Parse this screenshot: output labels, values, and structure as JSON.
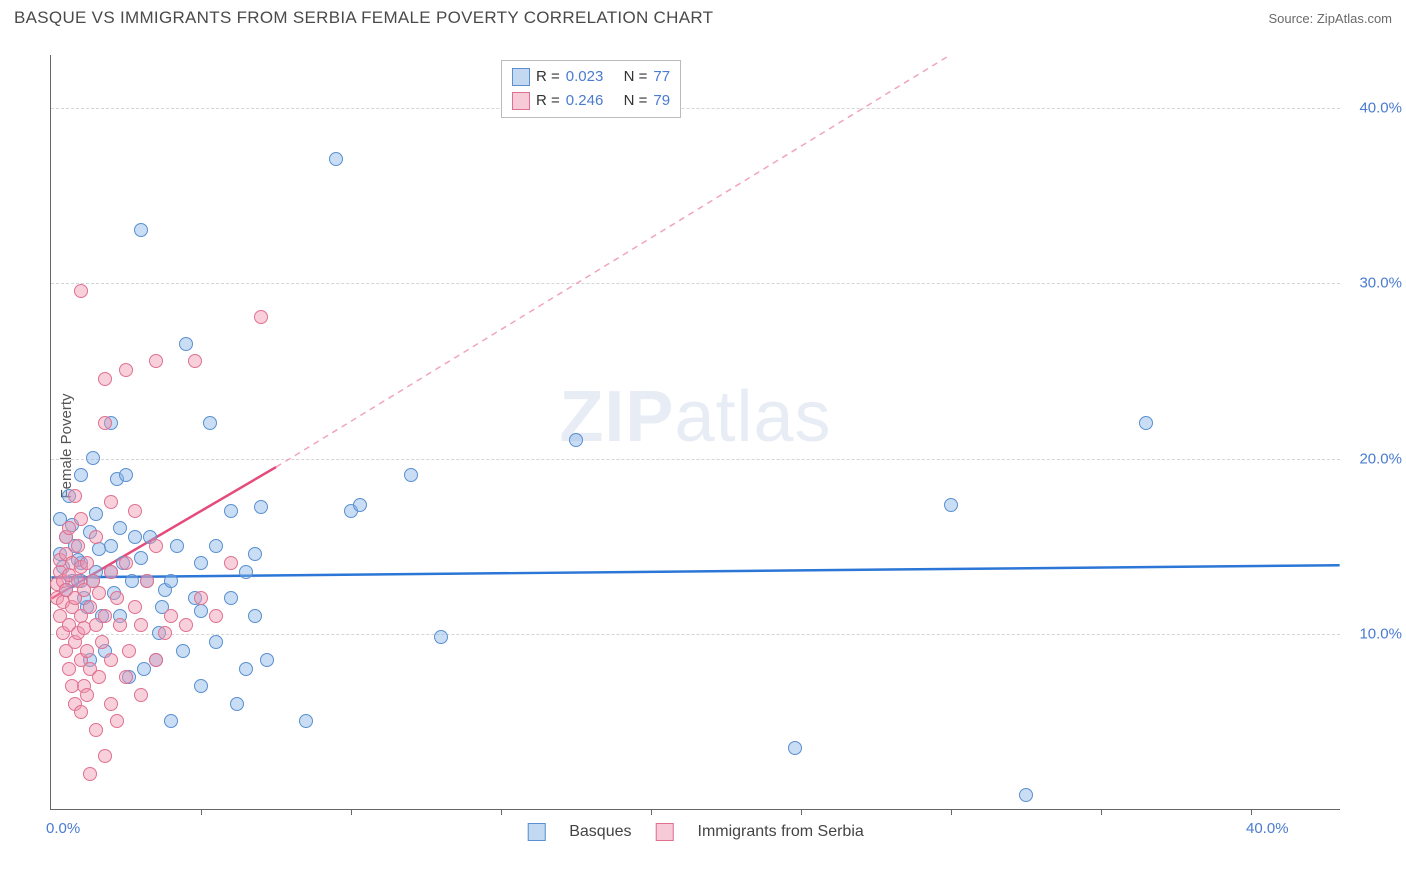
{
  "title": "BASQUE VS IMMIGRANTS FROM SERBIA FEMALE POVERTY CORRELATION CHART",
  "source": "Source: ZipAtlas.com",
  "ylabel": "Female Poverty",
  "watermark": {
    "bold": "ZIP",
    "rest": "atlas"
  },
  "chart": {
    "type": "scatter",
    "xlim": [
      0,
      43
    ],
    "ylim": [
      0,
      43
    ],
    "background_color": "#ffffff",
    "grid_color": "#d5d5d5",
    "axis_color": "#666666",
    "label_color": "#4a7bd0",
    "point_radius": 7,
    "yticks": [
      {
        "value": 10,
        "label": "10.0%"
      },
      {
        "value": 20,
        "label": "20.0%"
      },
      {
        "value": 30,
        "label": "30.0%"
      },
      {
        "value": 40,
        "label": "40.0%"
      }
    ],
    "xticks": [
      5,
      10,
      15,
      20,
      25,
      30,
      35,
      40
    ],
    "xaxis_labels": [
      {
        "value": 0,
        "text": "0.0%"
      },
      {
        "value": 40,
        "text": "40.0%"
      }
    ],
    "series": [
      {
        "name": "Basques",
        "class": "point-blue",
        "color_fill": "rgba(135,180,230,0.45)",
        "color_stroke": "#5a8fd0",
        "R": "0.023",
        "N": "77",
        "trend": {
          "x1": 0,
          "y1": 13.2,
          "x2": 43,
          "y2": 13.9,
          "color": "#2b76d6",
          "width": 2.5,
          "dash": "none"
        },
        "points": [
          [
            0.3,
            16.5
          ],
          [
            0.3,
            14.5
          ],
          [
            0.4,
            13.8
          ],
          [
            0.5,
            12.5
          ],
          [
            0.5,
            15.5
          ],
          [
            0.6,
            17.8
          ],
          [
            0.7,
            16.2
          ],
          [
            0.8,
            15.0
          ],
          [
            1.0,
            13.0
          ],
          [
            1.0,
            19.0
          ],
          [
            1.2,
            11.5
          ],
          [
            1.3,
            8.5
          ],
          [
            1.4,
            20.0
          ],
          [
            1.5,
            13.5
          ],
          [
            1.6,
            14.8
          ],
          [
            1.8,
            9.0
          ],
          [
            2.0,
            13.5
          ],
          [
            2.0,
            22.0
          ],
          [
            2.2,
            18.8
          ],
          [
            2.3,
            11.0
          ],
          [
            2.5,
            19.0
          ],
          [
            2.6,
            7.5
          ],
          [
            2.8,
            15.5
          ],
          [
            3.0,
            33.0
          ],
          [
            3.1,
            8.0
          ],
          [
            3.2,
            13.0
          ],
          [
            3.5,
            8.5
          ],
          [
            3.7,
            11.5
          ],
          [
            4.0,
            5.0
          ],
          [
            4.2,
            15.0
          ],
          [
            4.4,
            9.0
          ],
          [
            4.5,
            26.5
          ],
          [
            5.0,
            14.0
          ],
          [
            5.0,
            11.3
          ],
          [
            5.0,
            7.0
          ],
          [
            5.3,
            22.0
          ],
          [
            5.5,
            9.5
          ],
          [
            6.0,
            17.0
          ],
          [
            6.2,
            6.0
          ],
          [
            6.5,
            8.0
          ],
          [
            6.5,
            13.5
          ],
          [
            6.8,
            11.0
          ],
          [
            7.0,
            17.2
          ],
          [
            7.2,
            8.5
          ],
          [
            8.5,
            5.0
          ],
          [
            9.5,
            37.0
          ],
          [
            10.0,
            17.0
          ],
          [
            10.3,
            17.3
          ],
          [
            12.0,
            19.0
          ],
          [
            13.0,
            9.8
          ],
          [
            17.5,
            21.0
          ],
          [
            24.8,
            3.5
          ],
          [
            30.0,
            17.3
          ],
          [
            32.5,
            0.8
          ],
          [
            36.5,
            22.0
          ],
          [
            1.0,
            14.0
          ],
          [
            1.3,
            15.8
          ],
          [
            1.5,
            16.8
          ],
          [
            2.1,
            12.3
          ],
          [
            2.4,
            14.0
          ],
          [
            3.0,
            14.3
          ],
          [
            3.8,
            12.5
          ],
          [
            0.7,
            13.0
          ],
          [
            0.9,
            14.2
          ],
          [
            1.1,
            12.0
          ],
          [
            1.4,
            13.0
          ],
          [
            1.7,
            11.0
          ],
          [
            2.0,
            15.0
          ],
          [
            2.3,
            16.0
          ],
          [
            2.7,
            13.0
          ],
          [
            3.3,
            15.5
          ],
          [
            3.6,
            10.0
          ],
          [
            4.0,
            13.0
          ],
          [
            4.8,
            12.0
          ],
          [
            5.5,
            15.0
          ],
          [
            6.0,
            12.0
          ],
          [
            6.8,
            14.5
          ]
        ]
      },
      {
        "name": "Immigrants from Serbia",
        "class": "point-pink",
        "color_fill": "rgba(240,150,175,0.45)",
        "color_stroke": "#e07090",
        "R": "0.246",
        "N": "79",
        "trend": {
          "x1": 0,
          "y1": 12.0,
          "x2": 7.5,
          "y2": 19.5,
          "color": "#e54b7a",
          "width": 2.5,
          "dash": "none"
        },
        "trend_ext": {
          "x1": 7.5,
          "y1": 19.5,
          "x2": 30,
          "y2": 43,
          "color": "#f0a5bc",
          "width": 1.5,
          "dash": "6,5"
        },
        "points": [
          [
            0.2,
            12.0
          ],
          [
            0.2,
            12.8
          ],
          [
            0.3,
            11.0
          ],
          [
            0.3,
            13.5
          ],
          [
            0.3,
            14.2
          ],
          [
            0.4,
            10.0
          ],
          [
            0.4,
            11.8
          ],
          [
            0.4,
            13.0
          ],
          [
            0.5,
            9.0
          ],
          [
            0.5,
            12.5
          ],
          [
            0.5,
            14.5
          ],
          [
            0.5,
            15.5
          ],
          [
            0.6,
            8.0
          ],
          [
            0.6,
            10.5
          ],
          [
            0.6,
            13.3
          ],
          [
            0.6,
            16.0
          ],
          [
            0.7,
            7.0
          ],
          [
            0.7,
            11.5
          ],
          [
            0.7,
            14.0
          ],
          [
            0.8,
            6.0
          ],
          [
            0.8,
            9.5
          ],
          [
            0.8,
            12.0
          ],
          [
            0.8,
            17.8
          ],
          [
            0.9,
            10.0
          ],
          [
            0.9,
            13.0
          ],
          [
            0.9,
            15.0
          ],
          [
            1.0,
            5.5
          ],
          [
            1.0,
            8.5
          ],
          [
            1.0,
            11.0
          ],
          [
            1.0,
            13.8
          ],
          [
            1.0,
            16.5
          ],
          [
            1.0,
            29.5
          ],
          [
            1.1,
            7.0
          ],
          [
            1.1,
            10.3
          ],
          [
            1.1,
            12.5
          ],
          [
            1.2,
            6.5
          ],
          [
            1.2,
            9.0
          ],
          [
            1.2,
            14.0
          ],
          [
            1.3,
            2.0
          ],
          [
            1.3,
            8.0
          ],
          [
            1.3,
            11.5
          ],
          [
            1.4,
            13.0
          ],
          [
            1.5,
            4.5
          ],
          [
            1.5,
            10.5
          ],
          [
            1.5,
            15.5
          ],
          [
            1.6,
            7.5
          ],
          [
            1.6,
            12.3
          ],
          [
            1.7,
            9.5
          ],
          [
            1.8,
            3.0
          ],
          [
            1.8,
            11.0
          ],
          [
            1.8,
            22.0
          ],
          [
            1.8,
            24.5
          ],
          [
            2.0,
            6.0
          ],
          [
            2.0,
            8.5
          ],
          [
            2.0,
            13.5
          ],
          [
            2.0,
            17.5
          ],
          [
            2.2,
            5.0
          ],
          [
            2.2,
            12.0
          ],
          [
            2.3,
            10.5
          ],
          [
            2.5,
            7.5
          ],
          [
            2.5,
            14.0
          ],
          [
            2.5,
            25.0
          ],
          [
            2.6,
            9.0
          ],
          [
            2.8,
            11.5
          ],
          [
            2.8,
            17.0
          ],
          [
            3.0,
            6.5
          ],
          [
            3.0,
            10.5
          ],
          [
            3.2,
            13.0
          ],
          [
            3.5,
            8.5
          ],
          [
            3.5,
            15.0
          ],
          [
            3.5,
            25.5
          ],
          [
            3.8,
            10.0
          ],
          [
            4.0,
            11.0
          ],
          [
            4.5,
            10.5
          ],
          [
            4.8,
            25.5
          ],
          [
            5.0,
            12.0
          ],
          [
            5.5,
            11.0
          ],
          [
            6.0,
            14.0
          ],
          [
            7.0,
            28.0
          ]
        ]
      }
    ]
  },
  "legend_top_label_R": "R =",
  "legend_top_label_N": "N ="
}
